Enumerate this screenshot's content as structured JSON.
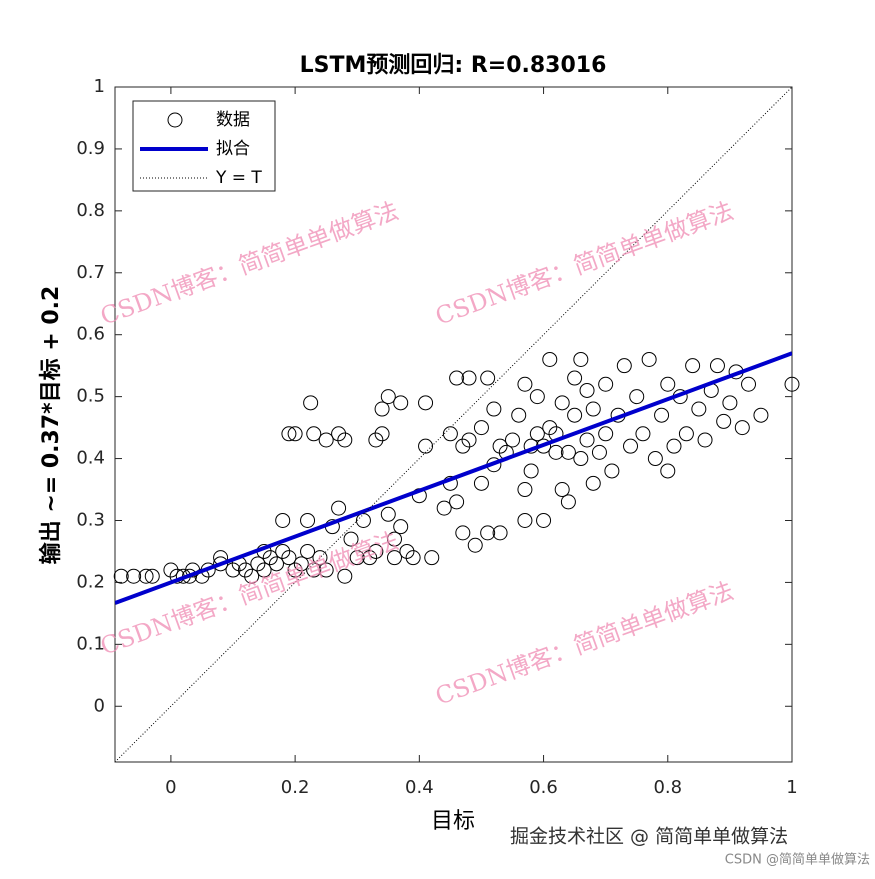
{
  "chart_data": {
    "type": "scatter",
    "title": "LSTM预测回归: R=0.83016",
    "xlabel": "目标",
    "ylabel": "输出 ~= 0.37*目标 + 0.2",
    "xlim": [
      -0.09,
      1
    ],
    "ylim": [
      -0.09,
      1
    ],
    "xticks": [
      0,
      0.2,
      0.4,
      0.6,
      0.8,
      1
    ],
    "yticks": [
      0,
      0.1,
      0.2,
      0.3,
      0.4,
      0.5,
      0.6,
      0.7,
      0.8,
      0.9,
      1
    ],
    "series": [
      {
        "name": "数据",
        "color": "#000000",
        "x": [
          -0.08,
          -0.06,
          -0.04,
          -0.03,
          0,
          0.01,
          0.02,
          0.03,
          0.035,
          0.05,
          0.06,
          0.08,
          0.08,
          0.1,
          0.11,
          0.12,
          0.13,
          0.14,
          0.15,
          0.15,
          0.16,
          0.17,
          0.18,
          0.19,
          0.2,
          0.21,
          0.22,
          0.23,
          0.24,
          0.25,
          0.18,
          0.19,
          0.2,
          0.22,
          0.225,
          0.23,
          0.25,
          0.26,
          0.27,
          0.27,
          0.28,
          0.28,
          0.29,
          0.3,
          0.31,
          0.32,
          0.33,
          0.33,
          0.34,
          0.34,
          0.35,
          0.35,
          0.36,
          0.36,
          0.37,
          0.37,
          0.38,
          0.39,
          0.4,
          0.41,
          0.41,
          0.42,
          0.44,
          0.45,
          0.45,
          0.46,
          0.46,
          0.47,
          0.47,
          0.48,
          0.48,
          0.49,
          0.5,
          0.5,
          0.51,
          0.51,
          0.52,
          0.52,
          0.53,
          0.53,
          0.54,
          0.55,
          0.56,
          0.57,
          0.57,
          0.57,
          0.58,
          0.58,
          0.59,
          0.59,
          0.6,
          0.6,
          0.61,
          0.61,
          0.62,
          0.62,
          0.63,
          0.63,
          0.64,
          0.64,
          0.65,
          0.65,
          0.66,
          0.66,
          0.67,
          0.67,
          0.68,
          0.68,
          0.69,
          0.7,
          0.7,
          0.71,
          0.72,
          0.73,
          0.74,
          0.75,
          0.76,
          0.77,
          0.78,
          0.79,
          0.8,
          0.8,
          0.81,
          0.82,
          0.83,
          0.84,
          0.85,
          0.86,
          0.87,
          0.88,
          0.89,
          0.9,
          0.91,
          0.92,
          0.93,
          0.95,
          1.0
        ],
        "values": [
          0.21,
          0.21,
          0.21,
          0.21,
          0.22,
          0.21,
          0.21,
          0.21,
          0.22,
          0.21,
          0.22,
          0.23,
          0.24,
          0.22,
          0.23,
          0.22,
          0.21,
          0.23,
          0.22,
          0.25,
          0.24,
          0.23,
          0.25,
          0.24,
          0.22,
          0.23,
          0.25,
          0.22,
          0.24,
          0.22,
          0.3,
          0.44,
          0.44,
          0.3,
          0.49,
          0.44,
          0.43,
          0.29,
          0.32,
          0.44,
          0.21,
          0.43,
          0.27,
          0.24,
          0.3,
          0.24,
          0.25,
          0.43,
          0.44,
          0.48,
          0.31,
          0.5,
          0.27,
          0.24,
          0.49,
          0.29,
          0.25,
          0.24,
          0.34,
          0.42,
          0.49,
          0.24,
          0.32,
          0.36,
          0.44,
          0.33,
          0.53,
          0.28,
          0.42,
          0.53,
          0.43,
          0.26,
          0.36,
          0.45,
          0.28,
          0.53,
          0.39,
          0.48,
          0.42,
          0.28,
          0.41,
          0.43,
          0.47,
          0.3,
          0.35,
          0.52,
          0.42,
          0.38,
          0.44,
          0.5,
          0.3,
          0.42,
          0.45,
          0.56,
          0.41,
          0.44,
          0.35,
          0.49,
          0.33,
          0.41,
          0.47,
          0.53,
          0.4,
          0.56,
          0.43,
          0.51,
          0.36,
          0.48,
          0.41,
          0.44,
          0.52,
          0.38,
          0.47,
          0.55,
          0.42,
          0.5,
          0.44,
          0.56,
          0.4,
          0.47,
          0.52,
          0.38,
          0.42,
          0.5,
          0.44,
          0.55,
          0.48,
          0.43,
          0.51,
          0.55,
          0.46,
          0.49,
          0.54,
          0.45,
          0.52,
          0.47,
          0.52
        ]
      },
      {
        "name": "拟合",
        "color": "#0000cc",
        "slope": 0.37,
        "intercept": 0.2
      },
      {
        "name": "Y = T",
        "color": "#000000"
      }
    ],
    "watermarks": [
      "CSDN博客：简简单单做算法",
      "CSDN博客：简简单单做算法",
      "CSDN博客：简简单单做算法",
      "CSDN博客：简简单单做算法"
    ],
    "footer": "掘金技术社区 @ 简简单单做算法",
    "credit": "CSDN @简简单单做算法"
  }
}
